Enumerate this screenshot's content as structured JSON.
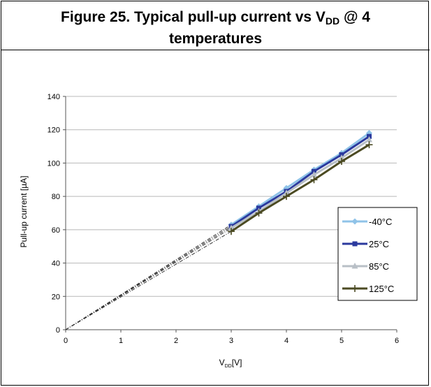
{
  "figure": {
    "title_prefix": "Figure 25. Typical pull-up current vs V",
    "title_sub": "DD",
    "title_line1_suffix": " @ 4",
    "title_line2": "temperatures"
  },
  "chart_data": {
    "type": "line",
    "xlabel_main": "V",
    "xlabel_sub": "DD",
    "xlabel_unit": "[V]",
    "ylabel": "Pull-up current [µA]",
    "xlim": [
      0,
      6
    ],
    "ylim": [
      0,
      140
    ],
    "x_ticks": [
      "0",
      "1",
      "2",
      "3",
      "4",
      "5",
      "6"
    ],
    "y_ticks": [
      "0",
      "20",
      "40",
      "60",
      "80",
      "100",
      "120",
      "140"
    ],
    "grid": "horizontal",
    "legend_position": "right",
    "x": [
      3,
      3.5,
      4,
      4.5,
      5,
      5.5
    ],
    "extrapolation": "dash-dot lines from origin (0, 0) to the first measured point at 3 V",
    "series": [
      {
        "name": "-40°C",
        "values": [
          63,
          74,
          85,
          96,
          106,
          118
        ],
        "color": "#8fc3e8",
        "marker": "diamond"
      },
      {
        "name": "25°C",
        "values": [
          62,
          73,
          83,
          95,
          105,
          116
        ],
        "color": "#2b3a9e",
        "marker": "square"
      },
      {
        "name": "85°C",
        "values": [
          61,
          71,
          82,
          93,
          103,
          114
        ],
        "color": "#b8bfc6",
        "marker": "triangle"
      },
      {
        "name": "125°C",
        "values": [
          59,
          70,
          80,
          90,
          101,
          111
        ],
        "color": "#4b4a22",
        "marker": "plus"
      }
    ]
  }
}
